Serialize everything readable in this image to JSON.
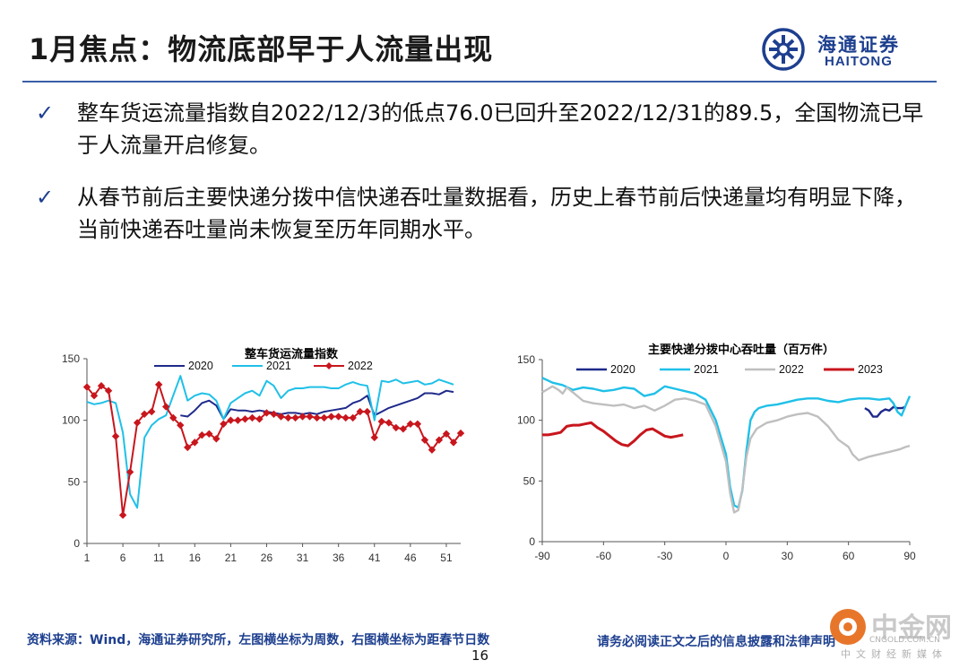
{
  "header": {
    "title": "1月焦点：物流底部早于人流量出现"
  },
  "logo": {
    "cn": "海通证券",
    "en": "HAITONG",
    "brand_color": "#1d3f8f"
  },
  "bullets": [
    {
      "icon": "check-icon",
      "check": "✓",
      "text": "整车货运流量指数自2022/12/3的低点76.0已回升至2022/12/31的89.5，全国物流已早于人流量开启修复。"
    },
    {
      "icon": "check-icon",
      "check": "✓",
      "text": "从春节前后主要快递分拨中信快递吞吐量数据看，历史上春节前后快递量均有明显下降，当前快递吞吐量尚未恢复至历年同期水平。"
    }
  ],
  "footer": {
    "source": "资料来源：Wind，海通证券研究所，左图横坐标为周数，右图横坐标为距春节日数",
    "disclaimer": "请务必阅读正文之后的信息披露和法律声明",
    "page": "16"
  },
  "watermark": {
    "text": "中金网",
    "url": "CNGOLD.COM.CN",
    "sub": "中文财经新媒体"
  },
  "chart_data": [
    {
      "type": "line",
      "title": "整车货运流量指数",
      "xlabel": "",
      "ylabel": "",
      "xlim": [
        1,
        53
      ],
      "ylim": [
        0,
        150
      ],
      "xticks": [
        1,
        6,
        11,
        16,
        21,
        26,
        31,
        36,
        41,
        46,
        51
      ],
      "yticks": [
        0,
        50,
        100,
        150
      ],
      "legend": "top",
      "series": [
        {
          "name": "2020",
          "color": "#1f2a8a",
          "marker": "none",
          "x": [
            14,
            15,
            16,
            17,
            18,
            19,
            20,
            21,
            22,
            23,
            24,
            25,
            26,
            27,
            28,
            29,
            30,
            31,
            32,
            33,
            34,
            35,
            36,
            37,
            38,
            39,
            40,
            41,
            42,
            43,
            44,
            45,
            46,
            47,
            48,
            49,
            50,
            51,
            52
          ],
          "y": [
            104,
            103,
            108,
            114,
            116,
            112,
            101,
            109,
            108,
            108,
            107,
            108,
            107,
            106,
            105,
            106,
            106,
            105,
            106,
            105,
            107,
            108,
            109,
            110,
            114,
            116,
            120,
            104,
            107,
            110,
            112,
            114,
            116,
            118,
            122,
            122,
            121,
            124,
            123
          ]
        },
        {
          "name": "2021",
          "color": "#1fc0e8",
          "marker": "none",
          "x": [
            1,
            2,
            3,
            4,
            5,
            6,
            7,
            8,
            9,
            10,
            11,
            12,
            13,
            14,
            15,
            16,
            17,
            18,
            19,
            20,
            21,
            22,
            23,
            24,
            25,
            26,
            27,
            28,
            29,
            30,
            31,
            32,
            33,
            34,
            35,
            36,
            37,
            38,
            39,
            40,
            41,
            42,
            43,
            44,
            45,
            46,
            47,
            48,
            49,
            50,
            51,
            52
          ],
          "y": [
            115,
            113,
            114,
            116,
            114,
            90,
            40,
            29,
            86,
            96,
            101,
            104,
            120,
            136,
            116,
            120,
            122,
            121,
            116,
            101,
            114,
            118,
            122,
            124,
            120,
            132,
            128,
            118,
            124,
            126,
            126,
            127,
            127,
            127,
            126,
            126,
            129,
            131,
            129,
            128,
            100,
            132,
            131,
            133,
            130,
            131,
            132,
            129,
            130,
            133,
            131,
            129
          ]
        },
        {
          "name": "2022",
          "color": "#c8161d",
          "marker": "diamond",
          "x": [
            1,
            2,
            3,
            4,
            5,
            6,
            7,
            8,
            9,
            10,
            11,
            12,
            13,
            14,
            15,
            16,
            17,
            18,
            19,
            20,
            21,
            22,
            23,
            24,
            25,
            26,
            27,
            28,
            29,
            30,
            31,
            32,
            33,
            34,
            35,
            36,
            37,
            38,
            39,
            40,
            41,
            42,
            43,
            44,
            45,
            46,
            47,
            48,
            49,
            50,
            51,
            52,
            53
          ],
          "y": [
            127,
            120,
            128,
            124,
            87,
            23,
            58,
            98,
            105,
            107,
            129,
            111,
            102,
            96,
            78,
            82,
            88,
            89,
            85,
            97,
            100,
            100,
            101,
            102,
            101,
            106,
            105,
            103,
            102,
            102,
            103,
            103,
            102,
            102,
            103,
            103,
            102,
            102,
            107,
            107,
            86,
            99,
            98,
            94,
            93,
            97,
            97,
            84,
            76,
            84,
            89,
            82,
            89.5
          ]
        }
      ]
    },
    {
      "type": "line",
      "title": "主要快递分拨中心吞吐量（百万件）",
      "xlabel": "",
      "ylabel": "",
      "xlim": [
        -90,
        90
      ],
      "ylim": [
        0,
        150
      ],
      "xticks": [
        -90,
        -60,
        -30,
        0,
        30,
        60,
        90
      ],
      "yticks": [
        0,
        50,
        100,
        150
      ],
      "legend": "top",
      "series": [
        {
          "name": "2020",
          "color": "#1f2a8a",
          "x": [
            68,
            70,
            72,
            74,
            76,
            78,
            80,
            82,
            84,
            86,
            88
          ],
          "y": [
            110,
            108,
            103,
            103,
            107,
            109,
            108,
            111,
            110,
            110,
            111
          ]
        },
        {
          "name": "2021",
          "color": "#1fc0e8",
          "x": [
            -90,
            -85,
            -80,
            -75,
            -70,
            -65,
            -60,
            -55,
            -50,
            -45,
            -40,
            -35,
            -30,
            -25,
            -20,
            -15,
            -10,
            -5,
            0,
            2,
            4,
            6,
            8,
            10,
            12,
            14,
            16,
            20,
            25,
            30,
            35,
            40,
            45,
            50,
            55,
            60,
            65,
            70,
            75,
            80,
            82,
            84,
            86,
            88,
            90
          ],
          "y": [
            135,
            131,
            129,
            125,
            127,
            126,
            124,
            125,
            127,
            126,
            120,
            122,
            128,
            126,
            124,
            122,
            117,
            100,
            72,
            45,
            30,
            28,
            42,
            75,
            100,
            107,
            110,
            112,
            113,
            115,
            117,
            118,
            118,
            116,
            115,
            117,
            118,
            118,
            117,
            118,
            114,
            107,
            104,
            112,
            120
          ]
        },
        {
          "name": "2022",
          "color": "#bfbfbf",
          "x": [
            -90,
            -85,
            -82,
            -80,
            -78,
            -75,
            -70,
            -65,
            -60,
            -55,
            -50,
            -45,
            -40,
            -35,
            -30,
            -25,
            -20,
            -15,
            -10,
            -5,
            0,
            2,
            4,
            6,
            8,
            10,
            12,
            15,
            20,
            25,
            30,
            35,
            40,
            45,
            50,
            55,
            60,
            62,
            65,
            70,
            75,
            80,
            85,
            88,
            90
          ],
          "y": [
            123,
            128,
            125,
            122,
            127,
            123,
            116,
            114,
            113,
            112,
            113,
            110,
            112,
            108,
            112,
            117,
            118,
            116,
            113,
            95,
            66,
            40,
            24,
            26,
            43,
            70,
            85,
            93,
            98,
            100,
            103,
            105,
            106,
            103,
            95,
            84,
            78,
            72,
            67,
            70,
            72,
            74,
            76,
            78,
            79
          ]
        },
        {
          "name": "2023",
          "color": "#c8161d",
          "x": [
            -90,
            -87,
            -84,
            -81,
            -78,
            -75,
            -72,
            -69,
            -66,
            -63,
            -60,
            -57,
            -54,
            -51,
            -48,
            -45,
            -42,
            -39,
            -36,
            -33,
            -30,
            -27,
            -24,
            -21
          ],
          "y": [
            88,
            88,
            89,
            90,
            95,
            96,
            96,
            97,
            98,
            94,
            91,
            87,
            83,
            80,
            79,
            83,
            88,
            92,
            93,
            90,
            87,
            86,
            87,
            88
          ]
        }
      ]
    }
  ]
}
